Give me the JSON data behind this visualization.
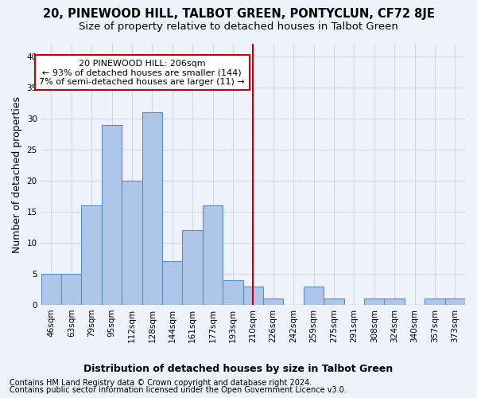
{
  "title": "20, PINEWOOD HILL, TALBOT GREEN, PONTYCLUN, CF72 8JE",
  "subtitle": "Size of property relative to detached houses in Talbot Green",
  "xlabel": "Distribution of detached houses by size in Talbot Green",
  "ylabel": "Number of detached properties",
  "footer_line1": "Contains HM Land Registry data © Crown copyright and database right 2024.",
  "footer_line2": "Contains public sector information licensed under the Open Government Licence v3.0.",
  "bin_labels": [
    "46sqm",
    "63sqm",
    "79sqm",
    "95sqm",
    "112sqm",
    "128sqm",
    "144sqm",
    "161sqm",
    "177sqm",
    "193sqm",
    "210sqm",
    "226sqm",
    "242sqm",
    "259sqm",
    "275sqm",
    "291sqm",
    "308sqm",
    "324sqm",
    "340sqm",
    "357sqm",
    "373sqm"
  ],
  "bar_heights": [
    5,
    5,
    16,
    29,
    20,
    31,
    7,
    12,
    16,
    4,
    3,
    1,
    0,
    3,
    1,
    0,
    1,
    1,
    0,
    1,
    1
  ],
  "bar_color": "#aec6e8",
  "bar_edge_color": "#5a8fc0",
  "grid_color": "#d0d8e8",
  "background_color": "#eef2fa",
  "vline_x_index": 10,
  "vline_color": "#cc0000",
  "annotation_line1": "20 PINEWOOD HILL: 206sqm",
  "annotation_line2": "← 93% of detached houses are smaller (144)",
  "annotation_line3": "7% of semi-detached houses are larger (11) →",
  "annotation_box_color": "#ffffff",
  "annotation_box_edge": "#cc0000",
  "ylim": [
    0,
    42
  ],
  "yticks": [
    0,
    5,
    10,
    15,
    20,
    25,
    30,
    35,
    40
  ],
  "title_fontsize": 10.5,
  "subtitle_fontsize": 9.5,
  "axis_label_fontsize": 9,
  "tick_fontsize": 7.5,
  "footer_fontsize": 7,
  "annot_fontsize": 8
}
